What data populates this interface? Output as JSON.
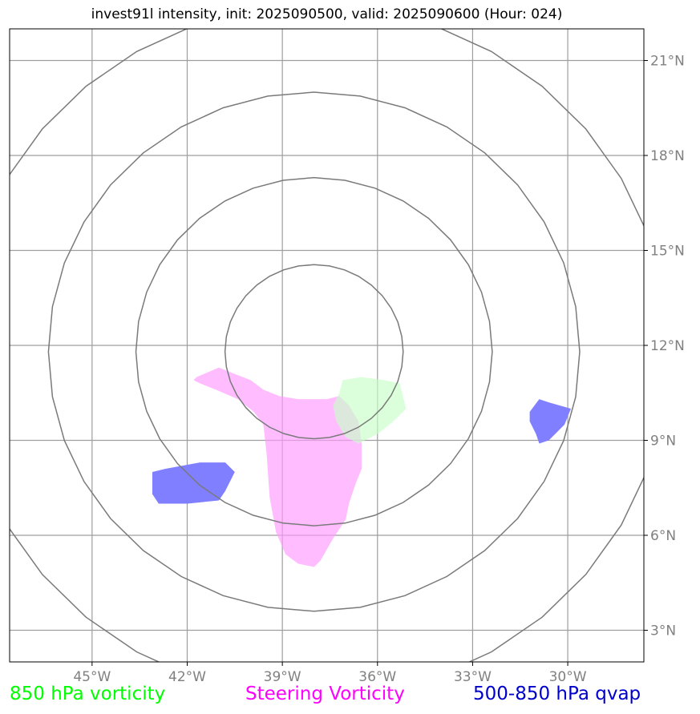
{
  "title": "invest91l intensity, init: 2025090500, valid: 2025090600 (Hour: 024)",
  "axes": {
    "lon_ticks": [
      "45°W",
      "42°W",
      "39°W",
      "36°W",
      "33°W",
      "30°W"
    ],
    "lat_ticks": [
      "21°N",
      "18°N",
      "15°N",
      "12°N",
      "9°N",
      "6°N",
      "3°N"
    ]
  },
  "legend": [
    {
      "label": "850 hPa vorticity",
      "color": "#00ff00"
    },
    {
      "label": "Steering Vorticity",
      "color": "#ff00ff"
    },
    {
      "label": "500-850 hPa qvap",
      "color": "#0000cc"
    }
  ],
  "extent": {
    "lon": [
      -47.6,
      -27.6
    ],
    "lat": [
      2.0,
      22.0
    ]
  },
  "gridlines": {
    "lon": [
      -45,
      -42,
      -39,
      -36,
      -33,
      -30
    ],
    "lat": [
      21,
      18,
      15,
      12,
      9,
      6,
      3
    ],
    "color": "#9e9e9e"
  },
  "range_rings": {
    "center": {
      "lon": -38.0,
      "lat": 11.8
    },
    "radii_deg_lat": [
      2.75,
      5.5,
      8.2,
      10.95
    ],
    "color": "#7a7a7a"
  },
  "features": [
    {
      "name": "qvap-west",
      "fill": "#7f7fff",
      "opacity": 1.0,
      "polygon": [
        [
          -43.1,
          7.9
        ],
        [
          -43.1,
          7.3
        ],
        [
          -42.9,
          7.0
        ],
        [
          -42.0,
          7.0
        ],
        [
          -41.0,
          7.1
        ],
        [
          -40.8,
          7.4
        ],
        [
          -40.5,
          8.0
        ],
        [
          -40.8,
          8.3
        ],
        [
          -41.6,
          8.3
        ],
        [
          -42.7,
          8.1
        ],
        [
          -43.1,
          8.0
        ]
      ]
    },
    {
      "name": "qvap-east",
      "fill": "#7f7fff",
      "opacity": 1.0,
      "polygon": [
        [
          -31.2,
          9.9
        ],
        [
          -30.9,
          10.3
        ],
        [
          -30.6,
          10.2
        ],
        [
          -29.9,
          10.0
        ],
        [
          -30.1,
          9.5
        ],
        [
          -30.4,
          9.2
        ],
        [
          -30.6,
          9.0
        ],
        [
          -30.9,
          8.9
        ],
        [
          -31.0,
          9.2
        ],
        [
          -31.2,
          9.6
        ]
      ]
    },
    {
      "name": "steering-vorticity",
      "fill": "#ff99ff",
      "opacity": 0.65,
      "polygon": [
        [
          -41.7,
          11.0
        ],
        [
          -41.0,
          11.3
        ],
        [
          -40.5,
          11.1
        ],
        [
          -40.0,
          10.9
        ],
        [
          -39.6,
          10.6
        ],
        [
          -39.1,
          10.4
        ],
        [
          -38.5,
          10.3
        ],
        [
          -37.6,
          10.3
        ],
        [
          -37.2,
          10.4
        ],
        [
          -36.9,
          10.1
        ],
        [
          -36.6,
          9.6
        ],
        [
          -36.5,
          8.9
        ],
        [
          -36.5,
          8.1
        ],
        [
          -36.7,
          7.6
        ],
        [
          -36.9,
          7.0
        ],
        [
          -37.0,
          6.5
        ],
        [
          -37.4,
          5.9
        ],
        [
          -37.8,
          5.2
        ],
        [
          -38.0,
          5.0
        ],
        [
          -38.5,
          5.1
        ],
        [
          -38.9,
          5.4
        ],
        [
          -39.2,
          6.1
        ],
        [
          -39.4,
          7.2
        ],
        [
          -39.5,
          8.6
        ],
        [
          -39.6,
          9.5
        ],
        [
          -39.9,
          9.9
        ],
        [
          -40.4,
          10.3
        ],
        [
          -41.1,
          10.6
        ],
        [
          -41.6,
          10.8
        ],
        [
          -41.8,
          10.9
        ]
      ]
    },
    {
      "name": "vorticity-850",
      "fill": "#c8ffc8",
      "opacity": 0.65,
      "polygon": [
        [
          -37.1,
          10.9
        ],
        [
          -36.5,
          11.0
        ],
        [
          -35.8,
          10.9
        ],
        [
          -35.3,
          10.8
        ],
        [
          -35.1,
          10.0
        ],
        [
          -35.5,
          9.6
        ],
        [
          -36.0,
          9.2
        ],
        [
          -36.4,
          9.0
        ],
        [
          -36.6,
          8.9
        ],
        [
          -37.0,
          9.1
        ],
        [
          -37.3,
          9.6
        ],
        [
          -37.4,
          10.1
        ],
        [
          -37.2,
          10.5
        ]
      ]
    }
  ]
}
